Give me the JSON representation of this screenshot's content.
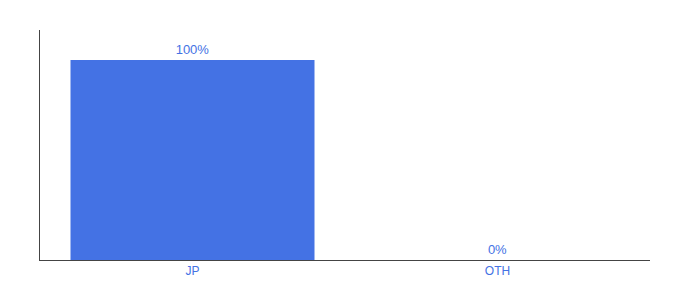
{
  "chart_data": {
    "type": "bar",
    "categories": [
      "JP",
      "OTH"
    ],
    "values": [
      100,
      0
    ],
    "value_labels": [
      "100%",
      "0%"
    ],
    "data_labels": true,
    "color": "#4472e4",
    "ylim": [
      0,
      115
    ],
    "yticks": [],
    "tick_labels": "x",
    "grid": false
  }
}
